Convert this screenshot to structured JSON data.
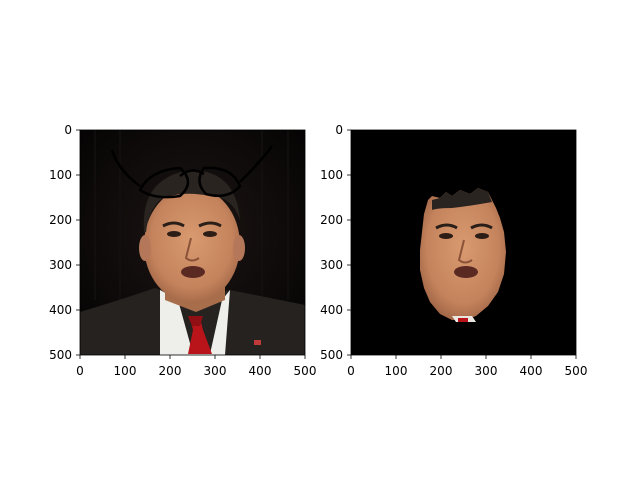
{
  "chart_data": [
    {
      "type": "image",
      "xlim": [
        0,
        500
      ],
      "ylim": [
        500,
        0
      ],
      "xticks": [
        0,
        100,
        200,
        300,
        400,
        500
      ],
      "yticks": [
        0,
        100,
        200,
        300,
        400,
        500
      ],
      "xticklabels": [
        "0",
        "100",
        "200",
        "300",
        "400",
        "500"
      ],
      "yticklabels": [
        "0",
        "100",
        "200",
        "300",
        "400",
        "500"
      ],
      "grid": false
    },
    {
      "type": "image",
      "xlim": [
        0,
        500
      ],
      "ylim": [
        500,
        0
      ],
      "xticks": [
        0,
        100,
        200,
        300,
        400,
        500
      ],
      "yticks": [
        0,
        100,
        200,
        300,
        400,
        500
      ],
      "xticklabels": [
        "0",
        "100",
        "200",
        "300",
        "400",
        "500"
      ],
      "yticklabels": [
        "0",
        "100",
        "200",
        "300",
        "400",
        "500"
      ],
      "grid": false
    }
  ],
  "colors": {
    "backdrop": "#0a0808",
    "suit": "#262220",
    "shirt": "#eeeeea",
    "tie": "#b8141a",
    "skin": "#c98a62",
    "hair": "#2a2420",
    "mask_background": "#000000"
  }
}
